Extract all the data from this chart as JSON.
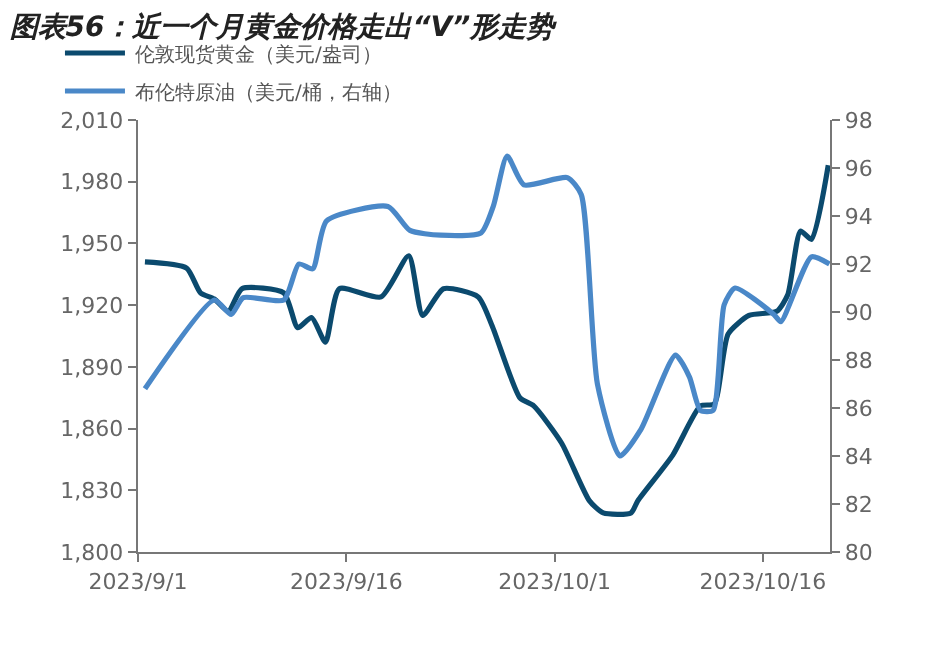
{
  "chart_data": {
    "type": "line",
    "title": "图表56：近一个月黄金价格走出“V”形走势",
    "series": [
      {
        "name": "伦敦现货黄金（美元/盎司）",
        "color": "#0b4a6e",
        "x": [
          "2023-09-01T12:00",
          "2023-09-04T12:00",
          "2023-09-05T12:00",
          "2023-09-06T12:00",
          "2023-09-07T12:00",
          "2023-09-08T12:00",
          "2023-09-11T12:00",
          "2023-09-12T12:00",
          "2023-09-13T12:00",
          "2023-09-14T12:00",
          "2023-09-15T12:00",
          "2023-09-18T12:00",
          "2023-09-20T12:00",
          "2023-09-21T12:00",
          "2023-09-23",
          "2023-09-25T12:00",
          "2023-09-26T12:00",
          "2023-09-28T12:00",
          "2023-09-29T12:00",
          "2023-10-01T12:00",
          "2023-10-03T12:00",
          "2023-10-04T12:00",
          "2023-10-06T12:00",
          "2023-10-07",
          "2023-10-09T12:00",
          "2023-10-11T12:00",
          "2023-10-12T12:00",
          "2023-10-13T12:00",
          "2023-10-15",
          "2023-10-17",
          "2023-10-17T19:00",
          "2023-10-18T17:00",
          "2023-10-19T12:00",
          "2023-10-20T17:00"
        ],
        "values": [
          1941,
          1938,
          1926,
          1923,
          1917,
          1928,
          1926,
          1909,
          1914,
          1902,
          1928,
          1924,
          1944,
          1915,
          1928,
          1924,
          1910,
          1875,
          1871,
          1853,
          1825,
          1819,
          1819,
          1825,
          1847,
          1871,
          1872,
          1906,
          1915,
          1917,
          1925,
          1956,
          1952,
          1988
        ]
      },
      {
        "name": "布伦特原油（美元/桶，右轴）",
        "color": "#4a88c8",
        "axis": "y2",
        "x": [
          "2023-09-01T12:00",
          "2023-09-06T12:00",
          "2023-09-07T17:00",
          "2023-09-08T14:00",
          "2023-09-11T12:00",
          "2023-09-12T14:00",
          "2023-09-13T14:00",
          "2023-09-14T14:00",
          "2023-09-19",
          "2023-09-20T14:00",
          "2023-09-22T19:00",
          "2023-09-25T17:00",
          "2023-09-26T14:00",
          "2023-09-27T14:00",
          "2023-09-28T19:00",
          "2023-10-01T22:00",
          "2023-10-02T22:00",
          "2023-10-04T02:00",
          "2023-10-05T17:00",
          "2023-10-07T05:00",
          "2023-10-09T17:00",
          "2023-10-10T17:00",
          "2023-10-11T12:00",
          "2023-10-12T10:00",
          "2023-10-13T05:00",
          "2023-10-14",
          "2023-10-16T19:00",
          "2023-10-17T07:00",
          "2023-10-19T12:00",
          "2023-10-20T19:00"
        ],
        "values": [
          86.8,
          90.5,
          89.9,
          90.6,
          90.5,
          92.0,
          91.8,
          93.8,
          94.4,
          93.4,
          93.2,
          93.3,
          94.4,
          96.5,
          95.3,
          95.6,
          94.9,
          87.0,
          84.0,
          85.1,
          88.2,
          87.3,
          85.9,
          85.9,
          90.3,
          91.0,
          89.9,
          89.6,
          92.3,
          92.0
        ]
      }
    ],
    "xlim": [
      "2023-09-01",
      "2023-10-20T20:00"
    ],
    "xticks": [
      {
        "value": "2023-09-01",
        "label": "2023/9/1"
      },
      {
        "value": "2023-09-16",
        "label": "2023/9/16"
      },
      {
        "value": "2023-10-01",
        "label": "2023/10/1"
      },
      {
        "value": "2023-10-16",
        "label": "2023/10/16"
      }
    ],
    "ylim": [
      1800,
      2010
    ],
    "yticks": [
      {
        "value": 1800,
        "label": "1,800"
      },
      {
        "value": 1830,
        "label": "1,830"
      },
      {
        "value": 1860,
        "label": "1,860"
      },
      {
        "value": 1890,
        "label": "1,890"
      },
      {
        "value": 1920,
        "label": "1,920"
      },
      {
        "value": 1950,
        "label": "1,950"
      },
      {
        "value": 1980,
        "label": "1,980"
      },
      {
        "value": 2010,
        "label": "2,010"
      }
    ],
    "y2lim": [
      80,
      98
    ],
    "y2ticks": [
      80,
      82,
      84,
      86,
      88,
      90,
      92,
      94,
      96,
      98
    ],
    "legend": "top",
    "marker": "none",
    "line_style": "solid"
  }
}
